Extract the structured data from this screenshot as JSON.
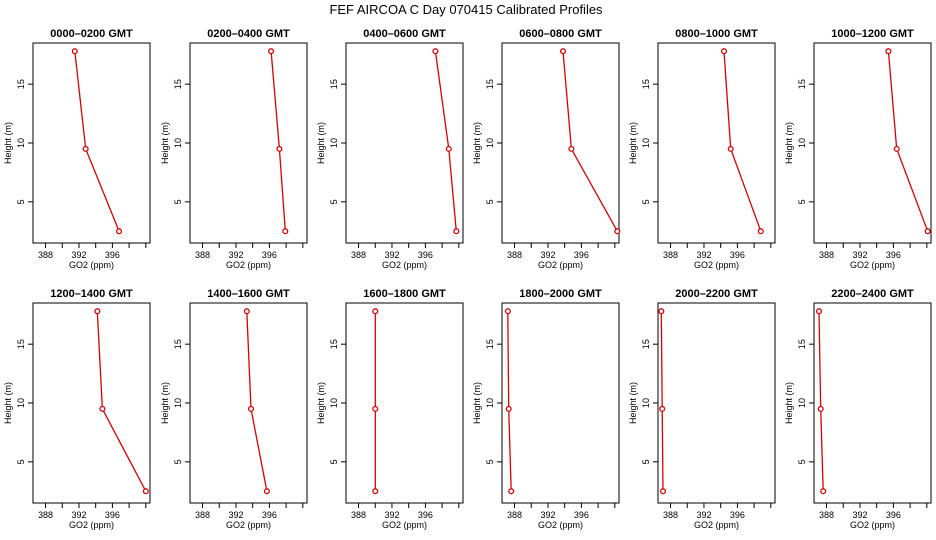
{
  "title": "FEF AIRCOA C  Day 070415  Calibrated Profiles",
  "colors": {
    "line": "#dd0000",
    "marker": "#dd0000",
    "axis": "#000000"
  },
  "chart_data": {
    "type": "line",
    "x_axis": {
      "label": "GO2 (ppm)",
      "ticks": [
        388,
        392,
        396
      ],
      "range": [
        386.5,
        400.5
      ]
    },
    "y_axis": {
      "label": "Height (m)",
      "ticks": [
        5,
        10,
        15
      ],
      "range": [
        1.5,
        18.5
      ]
    },
    "heights": [
      2.5,
      9.5,
      17.8
    ],
    "panels": [
      {
        "title": "0000–0200 GMT",
        "co2": [
          396.8,
          392.8,
          391.5
        ]
      },
      {
        "title": "0200–0400 GMT",
        "co2": [
          397.9,
          397.2,
          396.2
        ]
      },
      {
        "title": "0400–0600 GMT",
        "co2": [
          399.7,
          398.8,
          397.2
        ]
      },
      {
        "title": "0600–0800 GMT",
        "co2": [
          400.3,
          394.8,
          393.8
        ]
      },
      {
        "title": "0800–1000 GMT",
        "co2": [
          398.8,
          395.2,
          394.4
        ]
      },
      {
        "title": "1000–1200 GMT",
        "co2": [
          400.1,
          396.4,
          395.4
        ]
      },
      {
        "title": "1200–1400 GMT",
        "co2": [
          400.0,
          394.8,
          394.2
        ]
      },
      {
        "title": "1400–1600 GMT",
        "co2": [
          395.7,
          393.8,
          393.3
        ]
      },
      {
        "title": "1600–1800 GMT",
        "co2": [
          390.0,
          390.0,
          390.0
        ]
      },
      {
        "title": "1800–2000 GMT",
        "co2": [
          387.6,
          387.3,
          387.2
        ]
      },
      {
        "title": "2000–2200 GMT",
        "co2": [
          387.1,
          387.0,
          386.9
        ]
      },
      {
        "title": "2200–2400 GMT",
        "co2": [
          387.6,
          387.3,
          387.1
        ]
      }
    ]
  }
}
